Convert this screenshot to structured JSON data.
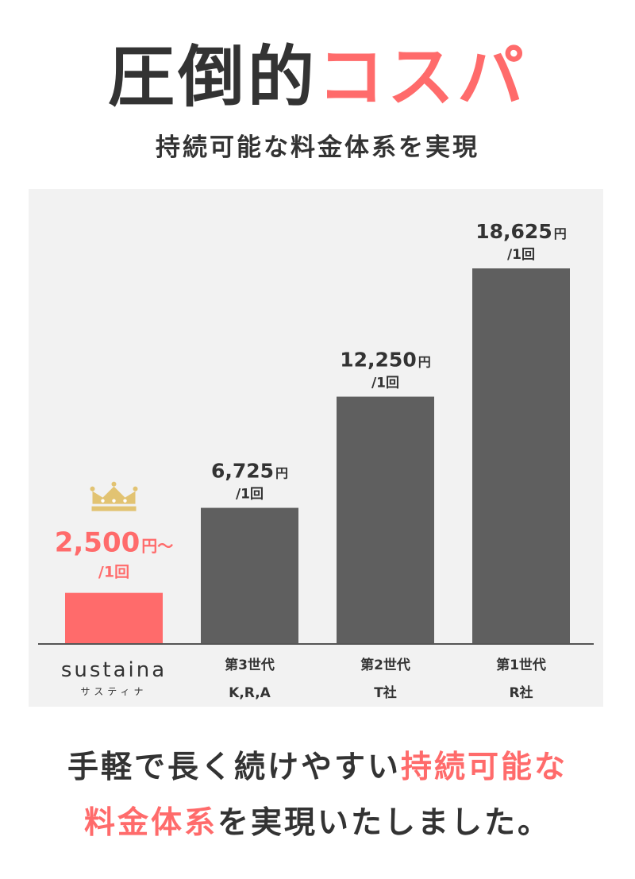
{
  "headline": {
    "dark": "圧倒的",
    "accent": "コスパ"
  },
  "subtitle": "持続可能な料金体系を実現",
  "chart_data": {
    "type": "bar",
    "categories": [
      {
        "line1": "sustaina",
        "line2": "サスティナ",
        "style": "brand"
      },
      {
        "line1": "第3世代",
        "line2": "K,R,A",
        "style": "normal"
      },
      {
        "line1": "第2世代",
        "line2": "T社",
        "style": "normal"
      },
      {
        "line1": "第1世代",
        "line2": "R社",
        "style": "normal"
      }
    ],
    "values": [
      2500,
      6725,
      12250,
      18625
    ],
    "value_labels": [
      {
        "amount": "2,500",
        "unit": "円～",
        "per": "/1回"
      },
      {
        "amount": "6,725",
        "unit": "円",
        "per": "/1回"
      },
      {
        "amount": "12,250",
        "unit": "円",
        "per": "/1回"
      },
      {
        "amount": "18,625",
        "unit": "円",
        "per": "/1回"
      }
    ],
    "bar_colors": [
      "#ff6b6b",
      "#5f5f5f",
      "#5f5f5f",
      "#5f5f5f"
    ],
    "label_colors": [
      "#ff6b6b",
      "#333333",
      "#333333",
      "#333333"
    ],
    "highlight_icon": "crown-icon",
    "highlight_icon_color": "#e2c372",
    "ylim": [
      0,
      18625
    ],
    "grid": false,
    "legend": "none"
  },
  "bottom": {
    "line1_dark": "手軽で長く続けやすい",
    "line1_accent": "持続可能な",
    "line2_accent": "料金体系",
    "line2_dark": "を実現いたしました。"
  }
}
